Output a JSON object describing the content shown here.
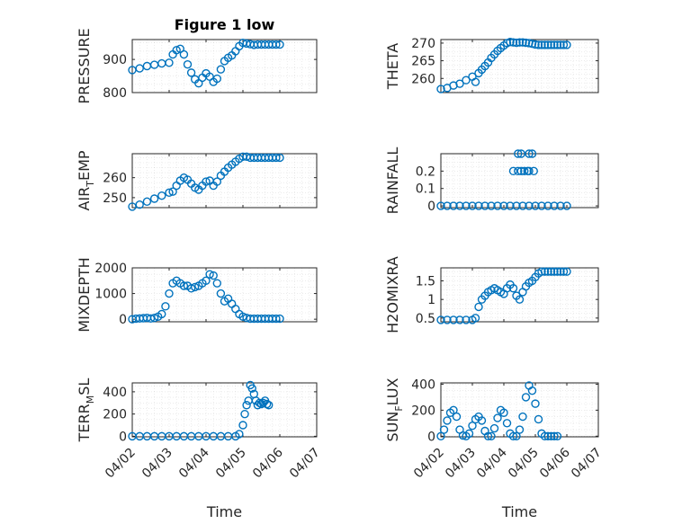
{
  "colors": {
    "series": "#0072BD",
    "axis": "#262626"
  },
  "chart_data": [
    {
      "type": "scatter",
      "title": "Figure 1 low",
      "ylabel_main": "PRESSURE",
      "ylabel_sub": "",
      "ylabel_tail": "",
      "ylim": [
        800,
        960
      ],
      "yticks": [
        800,
        900
      ],
      "ytick_labels": [
        "800",
        "900"
      ],
      "xticks": [
        "04/02",
        "04/03",
        "04/04",
        "04/05",
        "04/06",
        "04/07"
      ],
      "x": [
        0.0,
        0.2,
        0.4,
        0.6,
        0.8,
        1.0,
        1.1,
        1.2,
        1.3,
        1.4,
        1.5,
        1.6,
        1.7,
        1.8,
        1.9,
        2.0,
        2.1,
        2.2,
        2.3,
        2.4,
        2.5,
        2.6,
        2.7,
        2.8,
        2.9,
        3.0,
        3.1,
        3.2,
        3.3,
        3.4,
        3.5,
        3.6,
        3.7,
        3.8,
        3.9,
        4.0
      ],
      "y": [
        868,
        873,
        880,
        884,
        888,
        890,
        915,
        928,
        932,
        915,
        885,
        860,
        840,
        828,
        845,
        858,
        848,
        832,
        842,
        870,
        895,
        905,
        912,
        925,
        940,
        950,
        948,
        946,
        944,
        945,
        945,
        945,
        945,
        945,
        945,
        945
      ]
    },
    {
      "type": "scatter",
      "title": "",
      "ylabel_main": "THETA",
      "ylabel_sub": "",
      "ylabel_tail": "",
      "ylim": [
        256,
        271
      ],
      "yticks": [
        260,
        265,
        270
      ],
      "ytick_labels": [
        "260",
        "265",
        "270"
      ],
      "xticks": [
        "04/02",
        "04/03",
        "04/04",
        "04/05",
        "04/06",
        "04/07"
      ],
      "x": [
        0.0,
        0.2,
        0.4,
        0.6,
        0.8,
        1.0,
        1.1,
        1.2,
        1.3,
        1.4,
        1.5,
        1.6,
        1.7,
        1.8,
        1.9,
        2.0,
        2.1,
        2.2,
        2.3,
        2.4,
        2.5,
        2.6,
        2.7,
        2.8,
        2.9,
        3.0,
        3.1,
        3.2,
        3.3,
        3.4,
        3.5,
        3.6,
        3.7,
        3.8,
        3.9,
        4.0
      ],
      "y": [
        257,
        257.3,
        258,
        258.5,
        259.5,
        260.5,
        259,
        261.5,
        262.5,
        263.5,
        264.5,
        265.8,
        266.8,
        267.8,
        268.6,
        269.3,
        270,
        270.3,
        270.2,
        270.1,
        270.2,
        270.2,
        270.1,
        270,
        269.8,
        269.6,
        269.5,
        269.5,
        269.5,
        269.5,
        269.5,
        269.5,
        269.5,
        269.5,
        269.5,
        269.5
      ]
    },
    {
      "type": "scatter",
      "title": "",
      "ylabel_main": "AIR",
      "ylabel_sub": "T",
      "ylabel_tail": "EMP",
      "ylim": [
        245,
        272
      ],
      "yticks": [
        250,
        260
      ],
      "ytick_labels": [
        "250",
        "260"
      ],
      "xticks": [
        "04/02",
        "04/03",
        "04/04",
        "04/05",
        "04/06",
        "04/07"
      ],
      "x": [
        0.0,
        0.2,
        0.4,
        0.6,
        0.8,
        1.0,
        1.1,
        1.2,
        1.3,
        1.4,
        1.5,
        1.6,
        1.7,
        1.8,
        1.9,
        2.0,
        2.1,
        2.2,
        2.3,
        2.4,
        2.5,
        2.6,
        2.7,
        2.8,
        2.9,
        3.0,
        3.1,
        3.2,
        3.3,
        3.4,
        3.5,
        3.6,
        3.7,
        3.8,
        3.9,
        4.0
      ],
      "y": [
        245.5,
        246.5,
        248,
        249.5,
        251,
        252.5,
        253,
        256,
        258.5,
        260,
        259,
        257,
        255,
        254,
        256,
        258,
        258.5,
        256,
        258,
        261,
        263,
        265,
        266.5,
        268,
        269.5,
        270.5,
        270.5,
        270,
        270,
        270,
        270,
        270,
        270,
        270,
        270,
        270
      ]
    },
    {
      "type": "scatter",
      "title": "",
      "ylabel_main": "RAINFALL",
      "ylabel_sub": "",
      "ylabel_tail": "",
      "ylim": [
        -0.01,
        0.3
      ],
      "yticks": [
        0,
        0.1,
        0.2
      ],
      "ytick_labels": [
        "0",
        "0.1",
        "0.2"
      ],
      "xticks": [
        "04/02",
        "04/03",
        "04/04",
        "04/05",
        "04/06",
        "04/07"
      ],
      "x": [
        0.0,
        0.2,
        0.4,
        0.6,
        0.8,
        1.0,
        1.2,
        1.4,
        1.6,
        1.8,
        2.0,
        2.2,
        2.4,
        2.6,
        2.8,
        3.0,
        3.2,
        3.4,
        3.6,
        3.8,
        4.0,
        2.3,
        2.45,
        2.55,
        2.65,
        2.75,
        2.8,
        2.95,
        2.45,
        2.55,
        2.8,
        2.9
      ],
      "y": [
        0,
        0,
        0,
        0,
        0,
        0,
        0,
        0,
        0,
        0,
        0,
        0,
        0,
        0,
        0,
        0,
        0,
        0,
        0,
        0,
        0,
        0.2,
        0.2,
        0.2,
        0.2,
        0.2,
        0.2,
        0.2,
        0.3,
        0.3,
        0.3,
        0.3
      ]
    },
    {
      "type": "scatter",
      "title": "",
      "ylabel_main": "MIXDEPTH",
      "ylabel_sub": "",
      "ylabel_tail": "",
      "ylim": [
        -100,
        2000
      ],
      "yticks": [
        0,
        1000,
        2000
      ],
      "ytick_labels": [
        "0",
        "1000",
        "2000"
      ],
      "xticks": [
        "04/02",
        "04/03",
        "04/04",
        "04/05",
        "04/06",
        "04/07"
      ],
      "x": [
        0.0,
        0.1,
        0.2,
        0.3,
        0.4,
        0.5,
        0.6,
        0.7,
        0.8,
        0.9,
        1.0,
        1.1,
        1.2,
        1.3,
        1.4,
        1.5,
        1.6,
        1.7,
        1.8,
        1.9,
        2.0,
        2.1,
        2.2,
        2.3,
        2.4,
        2.5,
        2.6,
        2.7,
        2.8,
        2.9,
        3.0,
        3.1,
        3.2,
        3.3,
        3.4,
        3.5,
        3.6,
        3.7,
        3.8,
        3.9,
        4.0
      ],
      "y": [
        0,
        20,
        30,
        40,
        50,
        30,
        50,
        100,
        200,
        500,
        1000,
        1400,
        1500,
        1400,
        1300,
        1300,
        1200,
        1250,
        1300,
        1400,
        1500,
        1750,
        1700,
        1400,
        1000,
        700,
        800,
        600,
        400,
        200,
        100,
        50,
        20,
        20,
        20,
        20,
        20,
        20,
        20,
        20,
        20
      ]
    },
    {
      "type": "scatter",
      "title": "",
      "ylabel_main": "H2OMIXRA",
      "ylabel_sub": "",
      "ylabel_tail": "",
      "ylim": [
        0.4,
        1.85
      ],
      "yticks": [
        0.5,
        1,
        1.5
      ],
      "ytick_labels": [
        "0.5",
        "1",
        "1.5"
      ],
      "xticks": [
        "04/02",
        "04/03",
        "04/04",
        "04/05",
        "04/06",
        "04/07"
      ],
      "x": [
        0.0,
        0.2,
        0.4,
        0.6,
        0.8,
        1.0,
        1.1,
        1.2,
        1.3,
        1.4,
        1.5,
        1.6,
        1.7,
        1.8,
        1.9,
        2.0,
        2.1,
        2.2,
        2.3,
        2.4,
        2.5,
        2.6,
        2.7,
        2.8,
        2.9,
        3.0,
        3.1,
        3.2,
        3.3,
        3.4,
        3.5,
        3.6,
        3.7,
        3.8,
        3.9,
        4.0
      ],
      "y": [
        0.45,
        0.45,
        0.45,
        0.45,
        0.45,
        0.45,
        0.5,
        0.8,
        1.0,
        1.1,
        1.2,
        1.25,
        1.3,
        1.25,
        1.2,
        1.15,
        1.3,
        1.4,
        1.3,
        1.1,
        1.0,
        1.2,
        1.35,
        1.45,
        1.5,
        1.6,
        1.7,
        1.75,
        1.75,
        1.75,
        1.75,
        1.75,
        1.75,
        1.75,
        1.75,
        1.75
      ]
    },
    {
      "type": "scatter",
      "title": "",
      "ylabel_main": "TERR",
      "ylabel_sub": "M",
      "ylabel_tail": "SL",
      "ylim": [
        -5,
        480
      ],
      "yticks": [
        0,
        200,
        400
      ],
      "ytick_labels": [
        "0",
        "200",
        "400"
      ],
      "xticks": [
        "04/02",
        "04/03",
        "04/04",
        "04/05",
        "04/06",
        "04/07"
      ],
      "x": [
        0.0,
        0.2,
        0.4,
        0.6,
        0.8,
        1.0,
        1.2,
        1.4,
        1.6,
        1.8,
        2.0,
        2.2,
        2.4,
        2.6,
        2.8,
        2.9,
        3.0,
        3.05,
        3.1,
        3.15,
        3.2,
        3.25,
        3.3,
        3.35,
        3.4,
        3.45,
        3.5,
        3.55,
        3.6,
        3.65,
        3.7
      ],
      "y": [
        0,
        0,
        0,
        0,
        0,
        0,
        0,
        0,
        0,
        0,
        0,
        0,
        0,
        0,
        0,
        20,
        100,
        200,
        280,
        320,
        460,
        430,
        380,
        320,
        280,
        300,
        290,
        300,
        320,
        290,
        280
      ]
    },
    {
      "type": "scatter",
      "title": "",
      "ylabel_main": "SUN",
      "ylabel_sub": "F",
      "ylabel_tail": "LUX",
      "ylim": [
        -5,
        410
      ],
      "yticks": [
        0,
        200,
        400
      ],
      "ytick_labels": [
        "0",
        "200",
        "400"
      ],
      "xticks": [
        "04/02",
        "04/03",
        "04/04",
        "04/05",
        "04/06",
        "04/07"
      ],
      "x": [
        0.0,
        0.1,
        0.2,
        0.3,
        0.4,
        0.5,
        0.6,
        0.7,
        0.8,
        0.9,
        1.0,
        1.1,
        1.2,
        1.3,
        1.4,
        1.5,
        1.6,
        1.7,
        1.8,
        1.9,
        2.0,
        2.1,
        2.2,
        2.3,
        2.4,
        2.5,
        2.6,
        2.7,
        2.8,
        2.9,
        3.0,
        3.1,
        3.2,
        3.3,
        3.4,
        3.5,
        3.6,
        3.7
      ],
      "y": [
        0,
        50,
        120,
        180,
        200,
        150,
        50,
        5,
        0,
        20,
        80,
        130,
        150,
        120,
        40,
        0,
        0,
        60,
        140,
        200,
        180,
        100,
        20,
        0,
        0,
        50,
        150,
        300,
        390,
        350,
        250,
        130,
        20,
        0,
        0,
        0,
        0,
        0
      ]
    }
  ],
  "panels_xlabel": "Time"
}
